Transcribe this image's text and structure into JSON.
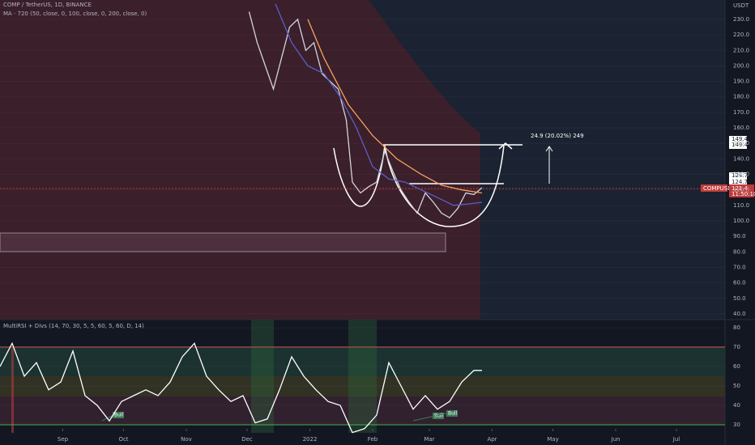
{
  "chart_data": [
    {
      "type": "line",
      "title": "COMP / TetherUS, 1D, BINANCE",
      "subtitle": "MA · 720 (50, close, 0, 100, close, 0, 200, close, 0)",
      "unit_label": "USDT",
      "xlim": [
        "2021-08-01",
        "2022-07-25"
      ],
      "ylim": [
        36.3,
        242.5
      ],
      "yticks": [
        {
          "value": 40,
          "label": "40.0"
        },
        {
          "value": 50,
          "label": "50.0"
        },
        {
          "value": 60,
          "label": "60.0"
        },
        {
          "value": 70,
          "label": "70.0"
        },
        {
          "value": 80,
          "label": "80.0"
        },
        {
          "value": 90,
          "label": "90.0"
        },
        {
          "value": 100,
          "label": "100.0"
        },
        {
          "value": 110,
          "label": "110.0"
        },
        {
          "value": 120,
          "label": "120.0"
        },
        {
          "value": 130,
          "label": "130.0"
        },
        {
          "value": 140,
          "label": "140.0"
        },
        {
          "value": 150,
          "label": "150.0"
        },
        {
          "value": 160,
          "label": "160.0"
        },
        {
          "value": 170,
          "label": "170.0"
        },
        {
          "value": 180,
          "label": "180.0"
        },
        {
          "value": 190,
          "label": "190.0"
        },
        {
          "value": 200,
          "label": "200.0"
        },
        {
          "value": 210,
          "label": "210.0"
        },
        {
          "value": 220,
          "label": "220.0"
        },
        {
          "value": 230,
          "label": "230.0"
        }
      ],
      "series": [
        {
          "color": "#d1d4dc",
          "x": [
            "2021-12-02",
            "2021-12-06",
            "2021-12-10",
            "2021-12-14",
            "2021-12-18",
            "2021-12-22",
            "2021-12-26",
            "2021-12-30",
            "2022-01-03",
            "2022-01-07",
            "2022-01-11",
            "2022-01-15",
            "2022-01-19",
            "2022-01-22",
            "2022-01-26",
            "2022-01-30",
            "2022-02-03",
            "2022-02-07",
            "2022-02-11",
            "2022-02-15",
            "2022-02-19",
            "2022-02-23",
            "2022-02-27",
            "2022-03-03",
            "2022-03-07",
            "2022-03-11",
            "2022-03-15",
            "2022-03-19",
            "2022-03-23",
            "2022-03-27"
          ],
          "values": [
            235,
            215,
            200,
            185,
            205,
            225,
            230,
            210,
            215,
            195,
            190,
            185,
            165,
            125,
            118,
            122,
            125,
            145,
            132,
            120,
            112,
            105,
            118,
            112,
            105,
            102,
            108,
            118,
            117,
            121.4
          ]
        },
        {
          "color": "#f7a35c",
          "x": [
            "2021-12-31",
            "2022-01-08",
            "2022-01-20",
            "2022-02-01",
            "2022-02-13",
            "2022-02-25",
            "2022-03-07",
            "2022-03-17",
            "2022-03-27"
          ],
          "values": [
            230,
            205,
            175,
            155,
            140,
            130,
            123,
            120,
            118
          ]
        },
        {
          "color": "#5b5fc7",
          "x": [
            "2021-12-15",
            "2021-12-23",
            "2021-12-31",
            "2022-01-08",
            "2022-01-16",
            "2022-01-24",
            "2022-02-01",
            "2022-02-09",
            "2022-02-17",
            "2022-02-25",
            "2022-03-05",
            "2022-03-13",
            "2022-03-21",
            "2022-03-27"
          ],
          "values": [
            240,
            215,
            200,
            195,
            180,
            160,
            135,
            127,
            125,
            120,
            115,
            110,
            111,
            112
          ]
        }
      ],
      "annotations": {
        "measure": "24.9 (20.02%) 249",
        "target": "149.4",
        "breakout": "124.7",
        "symbol": "COMPUSDT",
        "countdown": "11:50:10"
      }
    },
    {
      "type": "line",
      "title": "MultiRSI + Divs (14, 70, 30, 5, 5, 60, 5, 60, D, 14)",
      "xlim": [
        "2021-08-01",
        "2022-07-25"
      ],
      "xticks": [
        {
          "value": "2021-09-01",
          "label": "Sep"
        },
        {
          "value": "2021-10-01",
          "label": "Oct"
        },
        {
          "value": "2021-11-01",
          "label": "Nov"
        },
        {
          "value": "2021-12-01",
          "label": "Dec"
        },
        {
          "value": "2022-01-01",
          "label": "2022"
        },
        {
          "value": "2022-02-01",
          "label": "Feb"
        },
        {
          "value": "2022-03-01",
          "label": "Mar"
        },
        {
          "value": "2022-04-01",
          "label": "Apr"
        },
        {
          "value": "2022-05-01",
          "label": "May"
        },
        {
          "value": "2022-06-01",
          "label": "Jun"
        },
        {
          "value": "2022-07-01",
          "label": "Jul"
        }
      ],
      "ylim": [
        27.9,
        84.2
      ],
      "yticks": [
        30,
        40,
        50,
        60,
        70,
        80
      ],
      "levels": [
        70,
        30
      ],
      "series": [
        {
          "color": "#ffffff",
          "x": [
            "2021-08-01",
            "2021-08-07",
            "2021-08-13",
            "2021-08-19",
            "2021-08-25",
            "2021-08-31",
            "2021-09-06",
            "2021-09-12",
            "2021-09-18",
            "2021-09-24",
            "2021-09-30",
            "2021-10-06",
            "2021-10-12",
            "2021-10-18",
            "2021-10-24",
            "2021-10-30",
            "2021-11-05",
            "2021-11-11",
            "2021-11-17",
            "2021-11-23",
            "2021-11-29",
            "2021-12-05",
            "2021-12-11",
            "2021-12-17",
            "2021-12-23",
            "2021-12-29",
            "2022-01-04",
            "2022-01-10",
            "2022-01-16",
            "2022-01-22",
            "2022-01-28",
            "2022-02-03",
            "2022-02-09",
            "2022-02-15",
            "2022-02-21",
            "2022-02-27",
            "2022-03-05",
            "2022-03-11",
            "2022-03-17",
            "2022-03-23",
            "2022-03-27"
          ],
          "values": [
            60,
            72,
            55,
            62,
            48,
            52,
            68,
            45,
            40,
            32,
            42,
            45,
            48,
            45,
            52,
            65,
            72,
            55,
            48,
            42,
            45,
            31,
            33,
            48,
            65,
            55,
            48,
            42,
            40,
            26,
            28,
            35,
            62,
            50,
            38,
            45,
            38,
            42,
            52,
            58,
            58
          ]
        }
      ],
      "annotations": [
        "Bull",
        "Bull"
      ]
    }
  ]
}
